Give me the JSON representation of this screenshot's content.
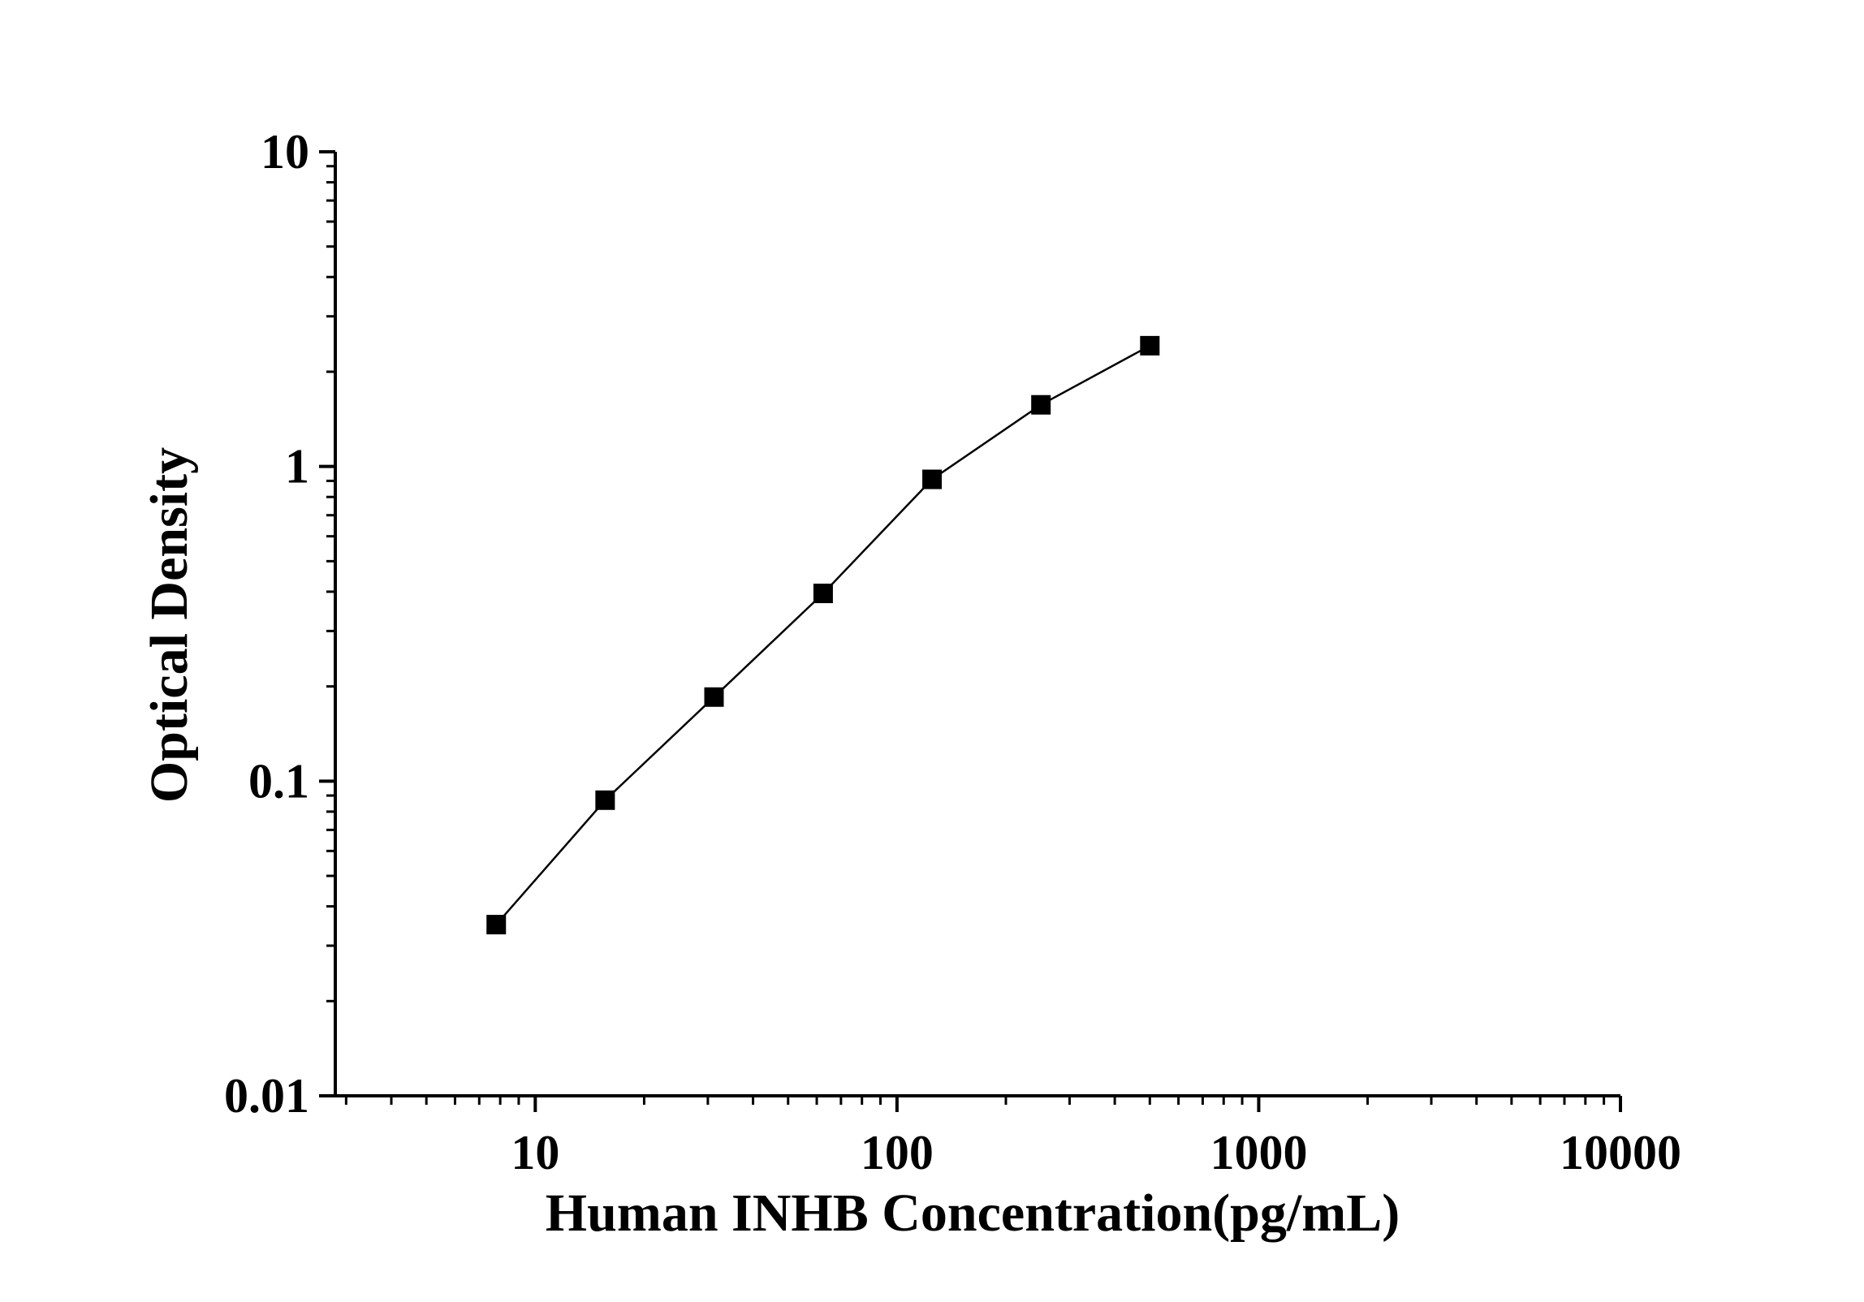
{
  "chart_data": {
    "type": "scatter",
    "xlabel": "Human INHB Concentration(pg/mL)",
    "ylabel": "Optical Density",
    "xscale": "log",
    "yscale": "log",
    "xlim": [
      2.8,
      10000
    ],
    "ylim": [
      0.01,
      10
    ],
    "x_ticks": [
      10,
      100,
      1000,
      10000
    ],
    "x_tick_labels": [
      "10",
      "100",
      "1000",
      "10000"
    ],
    "y_ticks": [
      0.01,
      0.1,
      1,
      10
    ],
    "y_tick_labels": [
      "0.01",
      "0.1",
      "1",
      "10"
    ],
    "grid": false,
    "legend": "none",
    "marker": "square",
    "connected_line": true,
    "color": "#000000",
    "series": [
      {
        "x": [
          7.8,
          15.6,
          31.2,
          62.5,
          125,
          250,
          500
        ],
        "y": [
          0.035,
          0.087,
          0.185,
          0.395,
          0.91,
          1.57,
          2.42
        ]
      }
    ]
  }
}
